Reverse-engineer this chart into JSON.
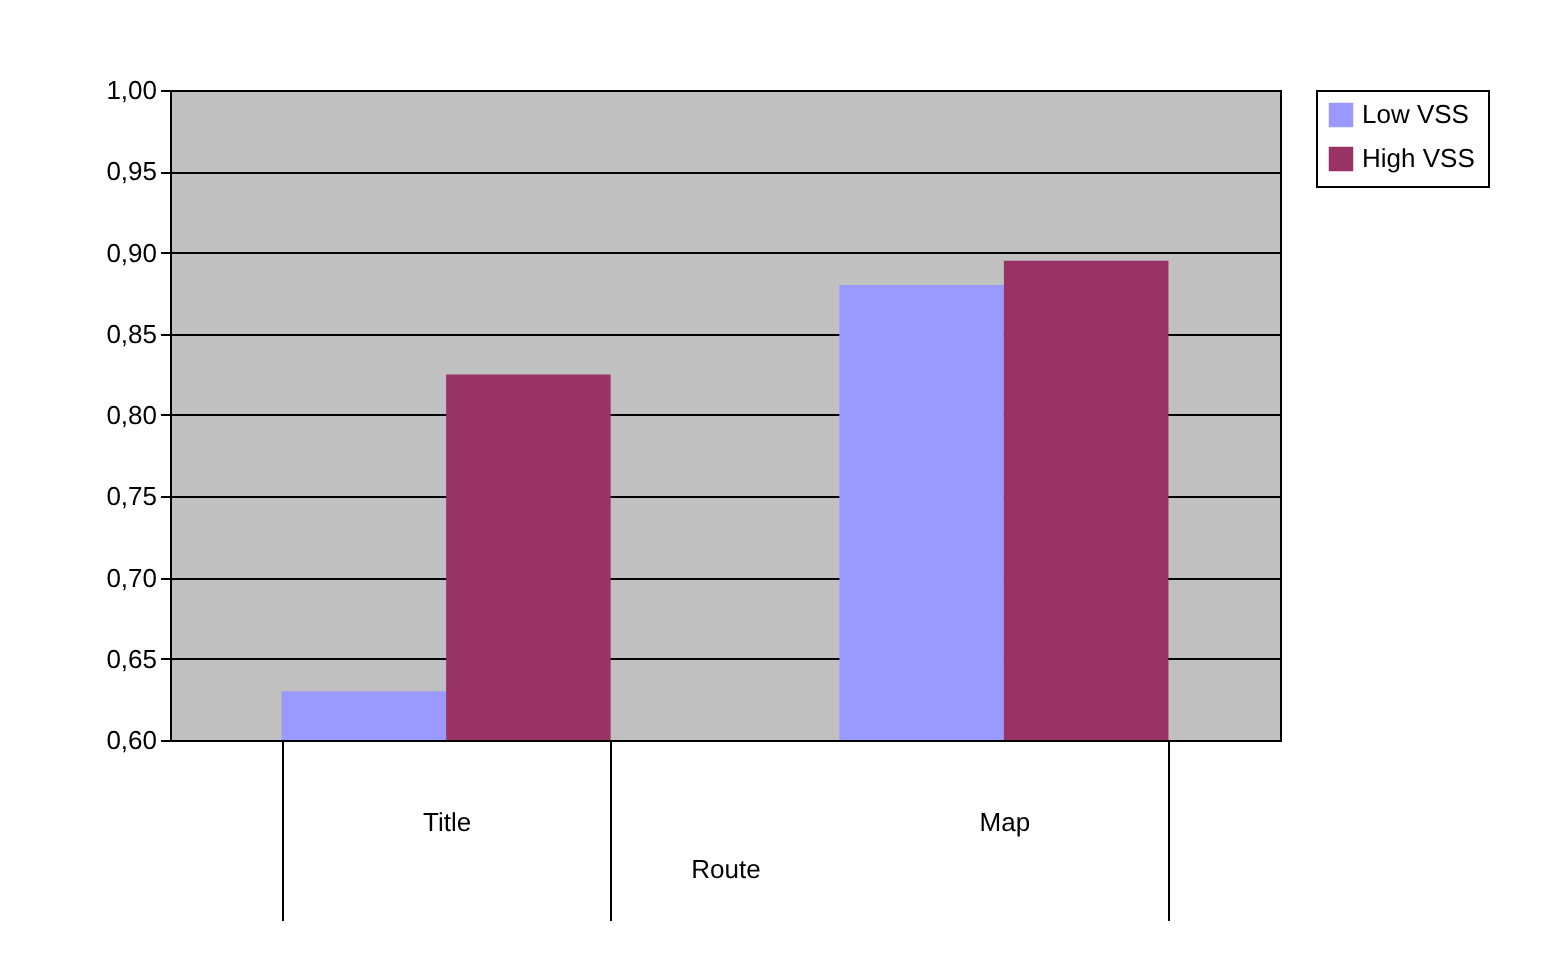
{
  "chart_data": {
    "type": "bar",
    "xlabel": "Route",
    "categories": [
      "Title",
      "Map"
    ],
    "series": [
      {
        "name": "Low VSS",
        "color": "#9999ff",
        "values": [
          0.63,
          0.88
        ]
      },
      {
        "name": "High VSS",
        "color": "#993366",
        "values": [
          0.825,
          0.895
        ]
      }
    ],
    "ylim": [
      0.6,
      1.0
    ],
    "yticks": [
      {
        "value": 0.6,
        "label": "0,60"
      },
      {
        "value": 0.65,
        "label": "0,65"
      },
      {
        "value": 0.7,
        "label": "0,70"
      },
      {
        "value": 0.75,
        "label": "0,75"
      },
      {
        "value": 0.8,
        "label": "0,80"
      },
      {
        "value": 0.85,
        "label": "0,85"
      },
      {
        "value": 0.9,
        "label": "0,90"
      },
      {
        "value": 0.95,
        "label": "0,95"
      },
      {
        "value": 1.0,
        "label": "1,00"
      }
    ],
    "grid": "y",
    "legend": "right"
  }
}
